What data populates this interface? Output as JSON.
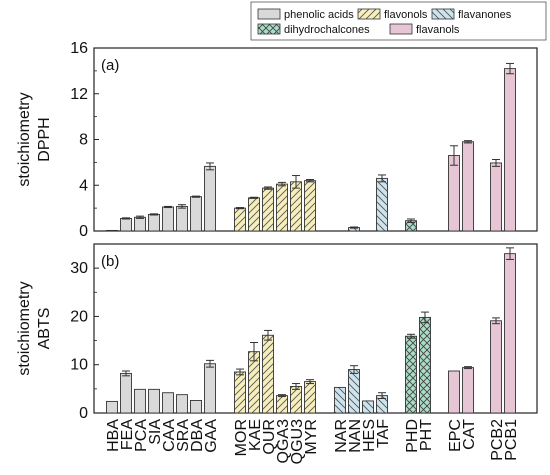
{
  "chart_data": {
    "type": "bar",
    "categories": [
      "HBA",
      "FEA",
      "PCA",
      "SIA",
      "CAA",
      "SRA",
      "DBA",
      "GAA",
      "MOR",
      "KAE",
      "QUR",
      "QGA3",
      "QGU3",
      "MYR",
      "NAR",
      "NAN",
      "HES",
      "TAF",
      "PHD",
      "PHT",
      "EPC",
      "CAT",
      "PCB2",
      "PCB1"
    ],
    "groups": [
      {
        "name": "phenolic acids",
        "fill": "#d9d9d9",
        "pattern": "none",
        "members": [
          "HBA",
          "FEA",
          "PCA",
          "SIA",
          "CAA",
          "SRA",
          "DBA",
          "GAA"
        ]
      },
      {
        "name": "flavonols",
        "fill": "#f6efbc",
        "pattern": "diag-right",
        "members": [
          "MOR",
          "KAE",
          "QUR",
          "QGA3",
          "QGU3",
          "MYR"
        ]
      },
      {
        "name": "flavanones",
        "fill": "#cde3ee",
        "pattern": "diag-left",
        "members": [
          "NAR",
          "NAN",
          "HES",
          "TAF"
        ]
      },
      {
        "name": "dihydrochalcones",
        "fill": "#a9ddc6",
        "pattern": "cross",
        "members": [
          "PHD",
          "PHT"
        ]
      },
      {
        "name": "flavanols",
        "fill": "#e6c6d4",
        "pattern": "none",
        "members": [
          "EPC",
          "CAT",
          "PCB2",
          "PCB1"
        ]
      }
    ],
    "panels": [
      {
        "tag": "(a)",
        "ylabel_line1": "stoichiometry",
        "ylabel_line2": "DPPH",
        "ylim": [
          0,
          16
        ],
        "yticks": [
          0,
          4,
          8,
          12,
          16
        ],
        "values": [
          0.05,
          1.1,
          1.2,
          1.45,
          2.1,
          2.15,
          3.0,
          5.65,
          2.0,
          2.9,
          3.75,
          4.1,
          4.3,
          4.4,
          0,
          0.3,
          0,
          4.6,
          0.9,
          0,
          6.6,
          7.8,
          5.95,
          14.2
        ],
        "errors": [
          0,
          0.05,
          0.1,
          0.05,
          0.05,
          0.15,
          0.05,
          0.3,
          0.05,
          0.05,
          0.1,
          0.15,
          0.55,
          0.1,
          0,
          0.05,
          0,
          0.3,
          0.15,
          0,
          0.85,
          0.1,
          0.3,
          0.45
        ]
      },
      {
        "tag": "(b)",
        "ylabel_line1": "stoichiometry",
        "ylabel_line2": "ABTS",
        "ylim": [
          0,
          35
        ],
        "yticks": [
          0,
          10,
          20,
          30
        ],
        "values": [
          2.4,
          8.2,
          4.9,
          4.9,
          4.2,
          3.8,
          2.6,
          10.2,
          8.5,
          12.7,
          16.1,
          3.6,
          5.5,
          6.5,
          5.3,
          9.0,
          2.5,
          3.6,
          15.9,
          19.8,
          8.7,
          9.4,
          19.1,
          33.0
        ],
        "errors": [
          0,
          0.5,
          0,
          0,
          0,
          0,
          0,
          0.7,
          0.6,
          1.9,
          1.0,
          0.2,
          0.6,
          0.4,
          0,
          0.8,
          0,
          0.6,
          0.4,
          1.1,
          0,
          0.2,
          0.6,
          1.2
        ]
      }
    ],
    "grid": false,
    "legend_position": "top"
  }
}
